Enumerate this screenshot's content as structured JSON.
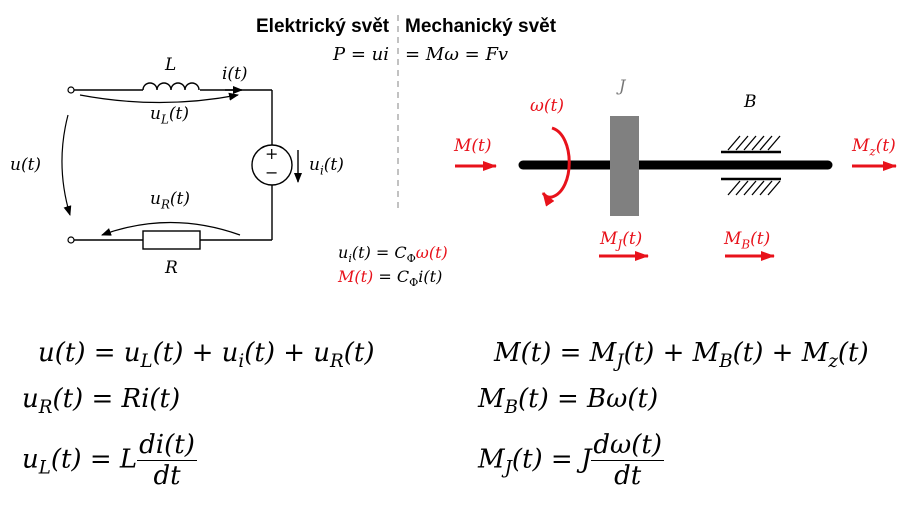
{
  "headers": {
    "electric": "Elektrický svět",
    "mechanic": "Mechanický svět"
  },
  "power": {
    "left": "P = ui",
    "right": "= Mω = Fv"
  },
  "circuit": {
    "inductor": "L",
    "current": "i(t)",
    "u_L": "u",
    "u_L_sub": "L",
    "u_L_t": "(t)",
    "u_total": "u(t)",
    "u_i": "u",
    "u_i_sub": "i",
    "u_i_t": "(t)",
    "u_R": "u",
    "u_R_sub": "R",
    "u_R_t": "(t)",
    "resistor": "R",
    "plus": "+",
    "minus": "−"
  },
  "coupling": {
    "eq1_left": "u",
    "eq1_sub": "i",
    "eq1_mid": "(t) = C",
    "eq1_phi": "Φ",
    "eq1_red": "ω(t)",
    "eq2_red": "M(t)",
    "eq2_mid": " = C",
    "eq2_phi": "Φ",
    "eq2_right": "i(t)"
  },
  "mechanical": {
    "omega": "ω(t)",
    "J": "J",
    "B": "B",
    "M_in": "M(t)",
    "M_z": "M",
    "M_z_sub": "z",
    "M_z_t": "(t)",
    "M_J": "M",
    "M_J_sub": "J",
    "M_J_t": "(t)",
    "M_B": "M",
    "M_B_sub": "B",
    "M_B_t": "(t)"
  },
  "equations": {
    "e1": "u(t) = u",
    "e1_a": "L",
    "e1_b": "(t) + u",
    "e1_c": "i",
    "e1_d": "(t) + u",
    "e1_e": "R",
    "e1_f": "(t)",
    "e2_a": "u",
    "e2_b": "R",
    "e2_c": "(t) = Ri(t)",
    "e3_a": "u",
    "e3_b": "L",
    "e3_c": "(t) = L",
    "e3_num": "di(t)",
    "e3_den": "dt",
    "e4": "M(t) = M",
    "e4_a": "J",
    "e4_b": "(t) + M",
    "e4_c": "B",
    "e4_d": "(t) + M",
    "e4_e": "z",
    "e4_f": "(t)",
    "e5_a": "M",
    "e5_b": "B",
    "e5_c": "(t) = Bω(t)",
    "e6_a": "M",
    "e6_b": "J",
    "e6_c": "(t) = J",
    "e6_num": "dω(t)",
    "e6_den": "dt"
  },
  "colors": {
    "accent": "#e8121b",
    "flywheel": "#808080"
  }
}
